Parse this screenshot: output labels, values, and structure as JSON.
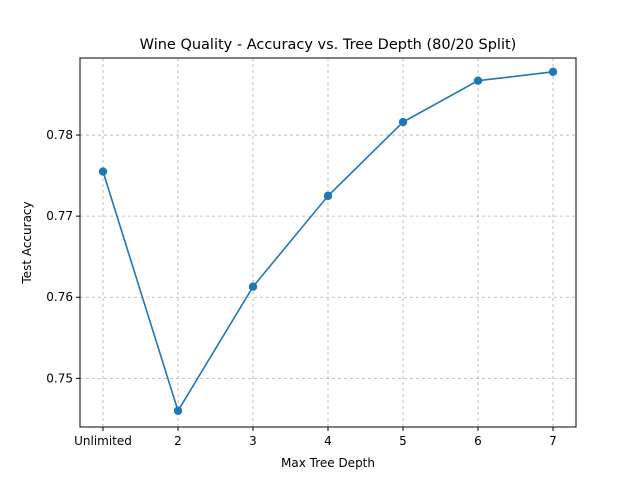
{
  "chart_data": {
    "type": "line",
    "title": "Wine Quality - Accuracy vs. Tree Depth (80/20 Split)",
    "xlabel": "Max Tree Depth",
    "ylabel": "Test Accuracy",
    "categories": [
      "Unlimited",
      "2",
      "3",
      "4",
      "5",
      "6",
      "7"
    ],
    "series": [
      {
        "values": [
          0.7755,
          0.746,
          0.7613,
          0.7725,
          0.7816,
          0.7867,
          0.7878
        ],
        "color": "#1f77b4",
        "marker": "circle"
      }
    ],
    "yticks": [
      0.75,
      0.76,
      0.77,
      0.78
    ],
    "ytick_labels": [
      "0.75",
      "0.76",
      "0.77",
      "0.78"
    ],
    "ylim": [
      0.744,
      0.7895
    ],
    "grid": true,
    "grid_style": "dashed",
    "legend": false
  }
}
